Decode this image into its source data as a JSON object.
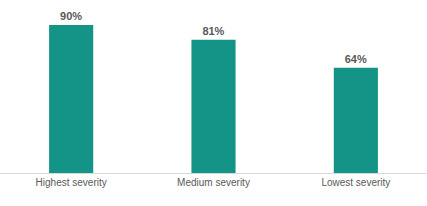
{
  "chart_data": {
    "type": "bar",
    "categories": [
      "Highest severity",
      "Medium severity",
      "Lowest severity"
    ],
    "values": [
      90,
      81,
      64
    ],
    "value_labels": [
      "90%",
      "81%",
      "64%"
    ],
    "color": "#139487",
    "ylim": [
      0,
      90
    ],
    "data_labels": true,
    "tick_labels": "x",
    "grid": false
  }
}
